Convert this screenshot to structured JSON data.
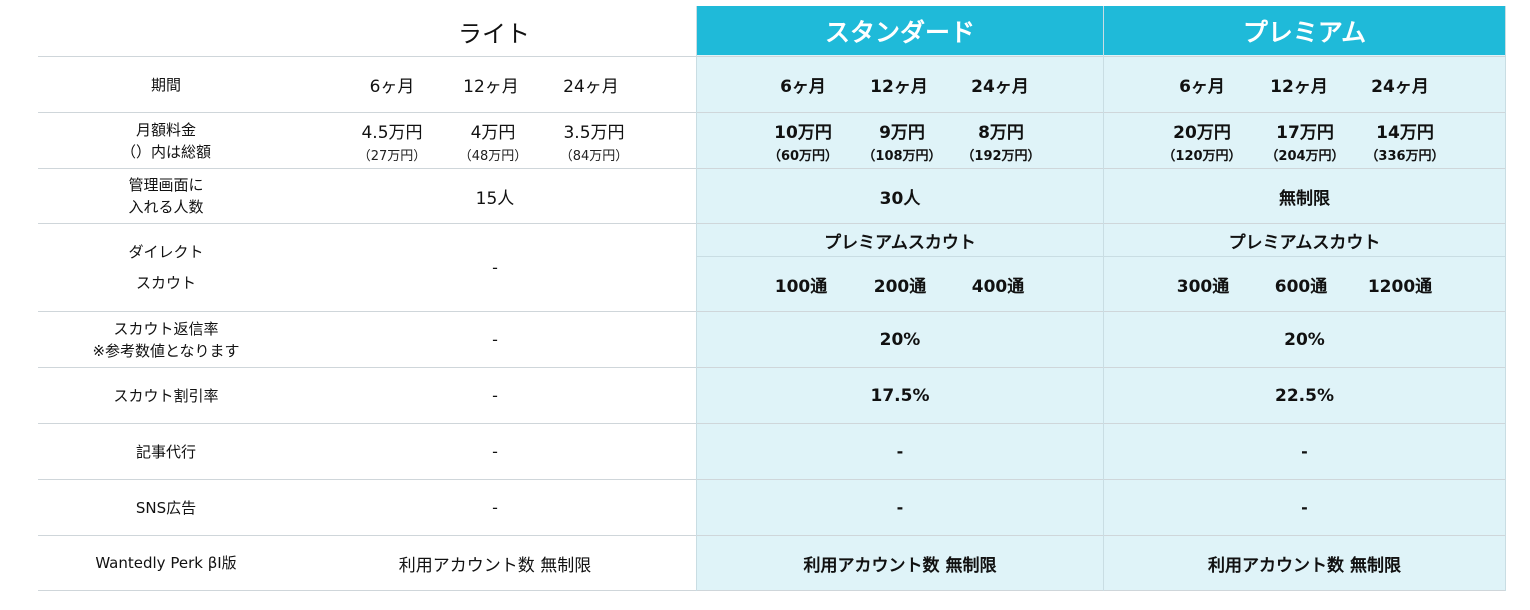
{
  "plans": {
    "lite": {
      "name": "ライト"
    },
    "standard": {
      "name": "スタンダード"
    },
    "premium": {
      "name": "プレミアム"
    }
  },
  "rows": {
    "period": {
      "label": "期間",
      "lite": [
        "6ヶ月",
        "12ヶ月",
        "24ヶ月"
      ],
      "standard": [
        "6ヶ月",
        "12ヶ月",
        "24ヶ月"
      ],
      "premium": [
        "6ヶ月",
        "12ヶ月",
        "24ヶ月"
      ]
    },
    "monthly_fee": {
      "label_line1": "月額料金",
      "label_line2": "（）内は総額",
      "lite": [
        {
          "price": "4.5万円",
          "total": "（27万円）"
        },
        {
          "price": "4万円",
          "total": "（48万円）"
        },
        {
          "price": "3.5万円",
          "total": "（84万円）"
        }
      ],
      "standard": [
        {
          "price": "10万円",
          "total": "（60万円）"
        },
        {
          "price": "9万円",
          "total": "（108万円）"
        },
        {
          "price": "8万円",
          "total": "（192万円）"
        }
      ],
      "premium": [
        {
          "price": "20万円",
          "total": "（120万円）"
        },
        {
          "price": "17万円",
          "total": "（204万円）"
        },
        {
          "price": "14万円",
          "total": "（336万円）"
        }
      ]
    },
    "admin_users": {
      "label_line1": "管理画面に",
      "label_line2": "入れる人数",
      "lite": "15人",
      "standard": "30人",
      "premium": "無制限"
    },
    "direct_scout": {
      "label_line1": "ダイレクト",
      "label_line2": "スカウト",
      "lite": "-",
      "standard_title": "プレミアムスカウト",
      "standard": [
        "100通",
        "200通",
        "400通"
      ],
      "premium_title": "プレミアムスカウト",
      "premium": [
        "300通",
        "600通",
        "1200通"
      ]
    },
    "reply_rate": {
      "label_line1": "スカウト返信率",
      "label_line2": "※参考数値となります",
      "lite": "-",
      "standard": "20%",
      "premium": "20%"
    },
    "discount_rate": {
      "label": "スカウト割引率",
      "lite": "-",
      "standard": "17.5%",
      "premium": "22.5%"
    },
    "article": {
      "label": "記事代行",
      "lite": "-",
      "standard": "-",
      "premium": "-"
    },
    "sns_ads": {
      "label": "SNS広告",
      "lite": "-",
      "standard": "-",
      "premium": "-"
    },
    "perk": {
      "label": "Wantedly Perk βI版",
      "lite": "利用アカウント数 無制限",
      "standard": "利用アカウント数 無制限",
      "premium": "利用アカウント数 無制限"
    }
  },
  "colors": {
    "header_accent": "#1fbad9",
    "highlight_bg": "#dff3f8"
  }
}
